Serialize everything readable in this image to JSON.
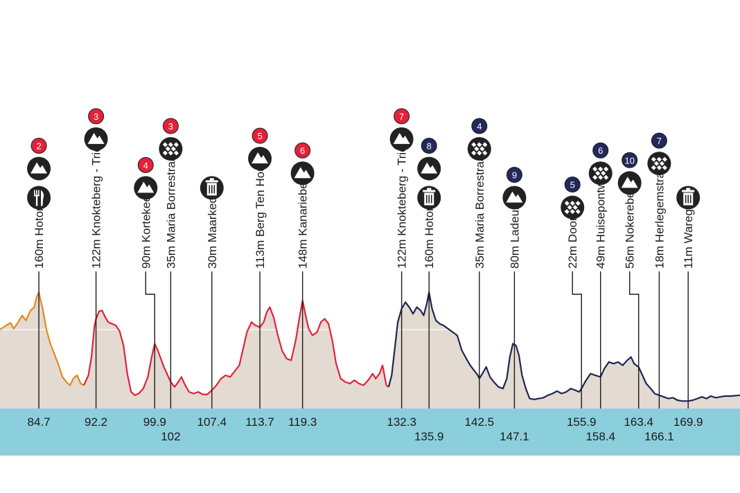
{
  "chart_data": {
    "type": "area",
    "title": "",
    "xlabel": "",
    "ylabel": "",
    "xlim": [
      79.6,
      176.7
    ],
    "ylim": [
      0,
      180
    ],
    "colors": {
      "area_fill": "#e3dad2",
      "km_band": "#8ccfdc",
      "line_orange": "#e08a1e",
      "line_red": "#e0223a",
      "line_navy": "#1d2550",
      "badge_red": "#e0223a",
      "badge_navy": "#23295a",
      "icon_dark": "#222222"
    },
    "series": [
      {
        "color_key": "line_orange",
        "points": [
          [
            79.6,
            95
          ],
          [
            80.4,
            100
          ],
          [
            81.0,
            103
          ],
          [
            81.4,
            96
          ],
          [
            82.0,
            104
          ],
          [
            82.5,
            112
          ],
          [
            83.0,
            106
          ],
          [
            83.6,
            118
          ],
          [
            84.1,
            122
          ],
          [
            84.4,
            134
          ],
          [
            84.7,
            140
          ],
          [
            85.2,
            120
          ],
          [
            85.7,
            95
          ],
          [
            86.2,
            78
          ],
          [
            86.8,
            64
          ],
          [
            87.3,
            52
          ],
          [
            87.8,
            38
          ],
          [
            88.3,
            32
          ],
          [
            88.8,
            28
          ],
          [
            89.2,
            36
          ],
          [
            89.7,
            40
          ],
          [
            90.2,
            30
          ],
          [
            90.6,
            28
          ]
        ]
      },
      {
        "color_key": "line_red",
        "points": [
          [
            90.6,
            28
          ],
          [
            91.2,
            40
          ],
          [
            91.6,
            62
          ],
          [
            92.0,
            100
          ],
          [
            92.2,
            108
          ],
          [
            92.6,
            117
          ],
          [
            93.0,
            118
          ],
          [
            93.4,
            110
          ],
          [
            93.8,
            104
          ],
          [
            94.3,
            102
          ],
          [
            94.8,
            100
          ],
          [
            95.3,
            93
          ],
          [
            95.8,
            76
          ],
          [
            96.3,
            42
          ],
          [
            96.8,
            20
          ],
          [
            97.3,
            16
          ],
          [
            97.8,
            18
          ],
          [
            98.4,
            24
          ],
          [
            99.0,
            38
          ],
          [
            99.5,
            62
          ],
          [
            99.9,
            78
          ],
          [
            100.3,
            70
          ],
          [
            100.7,
            60
          ],
          [
            101.1,
            50
          ],
          [
            101.6,
            40
          ],
          [
            102.0,
            32
          ],
          [
            102.5,
            26
          ],
          [
            103.0,
            32
          ],
          [
            103.4,
            38
          ],
          [
            103.9,
            28
          ],
          [
            104.4,
            20
          ],
          [
            105.0,
            18
          ],
          [
            105.6,
            20
          ],
          [
            106.2,
            17
          ],
          [
            106.8,
            17
          ],
          [
            107.4,
            22
          ],
          [
            108.0,
            28
          ],
          [
            108.6,
            36
          ],
          [
            109.2,
            40
          ],
          [
            109.8,
            38
          ],
          [
            110.4,
            45
          ],
          [
            111.0,
            52
          ],
          [
            111.5,
            72
          ],
          [
            112.0,
            92
          ],
          [
            112.6,
            104
          ],
          [
            113.1,
            100
          ],
          [
            113.7,
            98
          ],
          [
            114.2,
            104
          ],
          [
            114.6,
            116
          ],
          [
            115.0,
            122
          ],
          [
            115.5,
            110
          ],
          [
            116.0,
            90
          ],
          [
            116.6,
            70
          ],
          [
            117.2,
            60
          ],
          [
            117.8,
            58
          ],
          [
            118.4,
            82
          ],
          [
            118.9,
            110
          ],
          [
            119.3,
            130
          ],
          [
            119.7,
            112
          ],
          [
            120.1,
            96
          ],
          [
            120.6,
            88
          ],
          [
            121.2,
            92
          ],
          [
            121.7,
            104
          ],
          [
            122.2,
            108
          ],
          [
            122.7,
            102
          ],
          [
            123.2,
            82
          ],
          [
            123.7,
            54
          ],
          [
            124.3,
            36
          ],
          [
            124.9,
            32
          ],
          [
            125.5,
            30
          ],
          [
            126.1,
            34
          ],
          [
            126.7,
            30
          ],
          [
            127.3,
            28
          ],
          [
            127.9,
            34
          ],
          [
            128.5,
            42
          ],
          [
            128.9,
            36
          ],
          [
            129.4,
            42
          ],
          [
            129.8,
            52
          ],
          [
            130.3,
            28
          ],
          [
            130.6,
            26
          ]
        ]
      },
      {
        "color_key": "line_navy",
        "points": [
          [
            130.6,
            26
          ],
          [
            131.0,
            40
          ],
          [
            131.4,
            72
          ],
          [
            131.8,
            104
          ],
          [
            132.3,
            120
          ],
          [
            132.8,
            128
          ],
          [
            133.3,
            122
          ],
          [
            133.8,
            114
          ],
          [
            134.3,
            122
          ],
          [
            134.8,
            118
          ],
          [
            135.2,
            112
          ],
          [
            135.6,
            126
          ],
          [
            135.9,
            140
          ],
          [
            136.3,
            120
          ],
          [
            136.8,
            106
          ],
          [
            137.3,
            102
          ],
          [
            137.8,
            100
          ],
          [
            138.4,
            96
          ],
          [
            139.0,
            92
          ],
          [
            139.6,
            88
          ],
          [
            140.2,
            70
          ],
          [
            140.8,
            60
          ],
          [
            141.3,
            52
          ],
          [
            141.8,
            46
          ],
          [
            142.3,
            40
          ],
          [
            142.5,
            36
          ],
          [
            142.9,
            42
          ],
          [
            143.4,
            50
          ],
          [
            143.9,
            38
          ],
          [
            144.4,
            32
          ],
          [
            145.0,
            26
          ],
          [
            145.6,
            24
          ],
          [
            146.1,
            36
          ],
          [
            146.5,
            62
          ],
          [
            146.9,
            78
          ],
          [
            147.3,
            76
          ],
          [
            147.7,
            64
          ],
          [
            148.1,
            40
          ],
          [
            148.6,
            24
          ],
          [
            149.1,
            12
          ],
          [
            149.7,
            11
          ],
          [
            150.3,
            12
          ],
          [
            150.9,
            13
          ],
          [
            151.5,
            16
          ],
          [
            152.1,
            18
          ],
          [
            152.7,
            21
          ],
          [
            153.3,
            18
          ],
          [
            153.9,
            20
          ],
          [
            154.5,
            24
          ],
          [
            155.1,
            22
          ],
          [
            155.6,
            20
          ],
          [
            155.9,
            24
          ],
          [
            156.5,
            34
          ],
          [
            157.1,
            42
          ],
          [
            157.7,
            40
          ],
          [
            158.4,
            38
          ],
          [
            158.9,
            48
          ],
          [
            159.5,
            56
          ],
          [
            160.1,
            54
          ],
          [
            160.7,
            56
          ],
          [
            161.3,
            52
          ],
          [
            161.9,
            58
          ],
          [
            162.4,
            62
          ],
          [
            162.8,
            54
          ],
          [
            163.4,
            50
          ],
          [
            163.9,
            40
          ],
          [
            164.4,
            30
          ],
          [
            165.0,
            24
          ],
          [
            165.5,
            18
          ],
          [
            166.1,
            16
          ],
          [
            166.7,
            14
          ],
          [
            167.3,
            12
          ],
          [
            167.9,
            13
          ],
          [
            168.5,
            10
          ],
          [
            169.1,
            9
          ],
          [
            169.9,
            9
          ],
          [
            170.5,
            10
          ],
          [
            171.1,
            12
          ],
          [
            171.7,
            14
          ],
          [
            172.3,
            12
          ],
          [
            172.9,
            15
          ],
          [
            173.5,
            13
          ],
          [
            174.1,
            14
          ],
          [
            174.7,
            15
          ],
          [
            175.5,
            15
          ],
          [
            176.7,
            16
          ]
        ]
      }
    ],
    "reference_line": 95,
    "ticks": [
      {
        "km": 84.7,
        "label": "84.7",
        "row": 0
      },
      {
        "km": 92.2,
        "label": "92.2",
        "row": 0
      },
      {
        "km": 99.9,
        "label": "99.9",
        "row": 0
      },
      {
        "km": 102,
        "label": "102",
        "row": 1
      },
      {
        "km": 107.4,
        "label": "107.4",
        "row": 0
      },
      {
        "km": 113.7,
        "label": "113.7",
        "row": 0
      },
      {
        "km": 119.3,
        "label": "119.3",
        "row": 0
      },
      {
        "km": 132.3,
        "label": "132.3",
        "row": 0
      },
      {
        "km": 135.9,
        "label": "135.9",
        "row": 1
      },
      {
        "km": 142.5,
        "label": "142.5",
        "row": 0
      },
      {
        "km": 147.1,
        "label": "147.1",
        "row": 1
      },
      {
        "km": 155.9,
        "label": "155.9",
        "row": 0
      },
      {
        "km": 158.4,
        "label": "158.4",
        "row": 1
      },
      {
        "km": 163.4,
        "label": "163.4",
        "row": 0
      },
      {
        "km": 166.1,
        "label": "166.1",
        "row": 1
      },
      {
        "km": 169.9,
        "label": "169.9",
        "row": 0
      }
    ],
    "waypoints": [
      {
        "km": 84.7,
        "label": "160m Hotond",
        "icons": [
          {
            "type": "climb-icon",
            "badge": "2",
            "badge_color": "badge_red"
          },
          {
            "type": "feed-zone-icon"
          }
        ]
      },
      {
        "km": 92.2,
        "label": "122m Knokteberg - Trieu",
        "icons": [
          {
            "type": "climb-icon",
            "badge": "3",
            "badge_color": "badge_red"
          }
        ]
      },
      {
        "km": 99.9,
        "label": "90m Kortekeer",
        "icons": [
          {
            "type": "climb-icon",
            "badge": "4",
            "badge_color": "badge_red"
          }
        ]
      },
      {
        "km": 102,
        "label": "35m Maria Borrestraat",
        "icons": [
          {
            "type": "cobbles-icon",
            "badge": "3",
            "badge_color": "badge_red"
          }
        ]
      },
      {
        "km": 107.4,
        "label": "30m Maarkedal",
        "icons": [
          {
            "type": "waste-zone-icon"
          }
        ]
      },
      {
        "km": 113.7,
        "label": "113m Berg Ten Houte",
        "icons": [
          {
            "type": "climb-icon",
            "badge": "5",
            "badge_color": "badge_red"
          }
        ]
      },
      {
        "km": 119.3,
        "label": "148m Kanarieberg",
        "icons": [
          {
            "type": "climb-icon",
            "badge": "6",
            "badge_color": "badge_red"
          }
        ]
      },
      {
        "km": 132.3,
        "label": "122m Knokteberg - Trieu",
        "icons": [
          {
            "type": "climb-icon",
            "badge": "7",
            "badge_color": "badge_red"
          }
        ]
      },
      {
        "km": 135.9,
        "label": "160m Hotond",
        "icons": [
          {
            "type": "climb-icon",
            "badge": "8",
            "badge_color": "badge_navy"
          },
          {
            "type": "waste-zone-icon"
          }
        ]
      },
      {
        "km": 142.5,
        "label": "35m Maria Borrestraat",
        "icons": [
          {
            "type": "cobbles-icon",
            "badge": "4",
            "badge_color": "badge_navy"
          }
        ]
      },
      {
        "km": 147.1,
        "label": "80m Ladeuze",
        "icons": [
          {
            "type": "climb-icon",
            "badge": "9",
            "badge_color": "badge_navy"
          }
        ]
      },
      {
        "km": 155.9,
        "label": "22m Doorn",
        "icons": [
          {
            "type": "cobbles-icon",
            "badge": "5",
            "badge_color": "badge_navy"
          }
        ]
      },
      {
        "km": 158.4,
        "label": "49m Huisepontweg",
        "icons": [
          {
            "type": "cobbles-icon",
            "badge": "6",
            "badge_color": "badge_navy"
          }
        ]
      },
      {
        "km": 163.4,
        "label": "56m Nokereberg",
        "icons": [
          {
            "type": "climb-icon",
            "badge": "10",
            "badge_color": "badge_navy"
          }
        ]
      },
      {
        "km": 166.1,
        "label": "18m Herlegemstraat",
        "icons": [
          {
            "type": "cobbles-icon",
            "badge": "7",
            "badge_color": "badge_navy"
          }
        ]
      },
      {
        "km": 169.9,
        "label": "11m Waregem",
        "icons": [
          {
            "type": "waste-zone-icon"
          }
        ]
      }
    ]
  }
}
